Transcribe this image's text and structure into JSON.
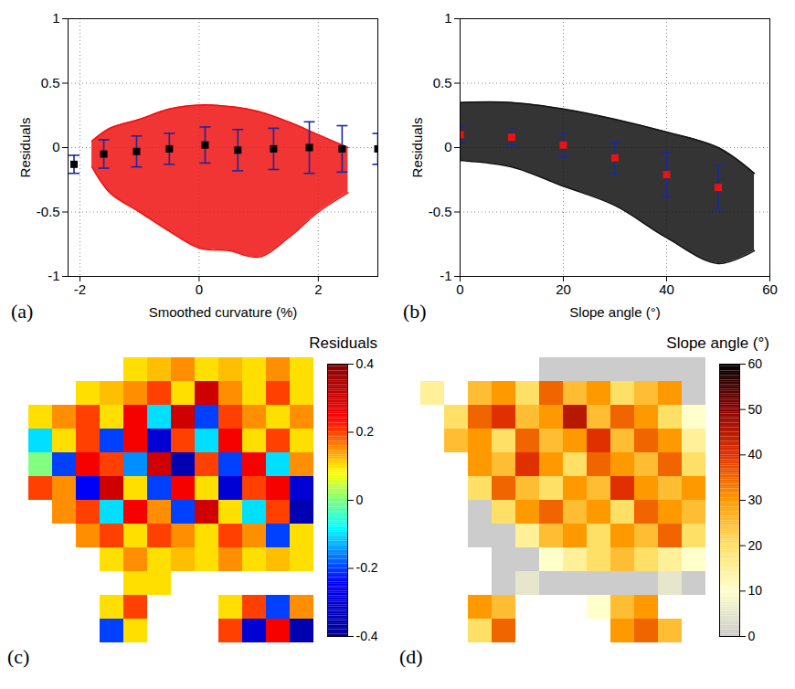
{
  "chart_data": [
    {
      "type": "scatter",
      "panel": "(a)",
      "x_label": "Smoothed curvature (%)",
      "y_label": "Residuals",
      "xlim": [
        -2.2,
        3
      ],
      "xticks": [
        -2,
        0,
        2
      ],
      "ylim": [
        -1,
        1
      ],
      "yticks": [
        -1,
        -0.5,
        0,
        0.5,
        1
      ],
      "grid": true,
      "series": [
        {
          "type": "area",
          "color": "#ee1111",
          "x": [
            -1.8,
            -1.5,
            -1,
            -0.5,
            0,
            0.5,
            1,
            1.5,
            2,
            2.5
          ],
          "upper": [
            0.05,
            0.15,
            0.22,
            0.3,
            0.33,
            0.32,
            0.28,
            0.2,
            0.1,
            0.0
          ],
          "lower": [
            -0.15,
            -0.35,
            -0.5,
            -0.65,
            -0.78,
            -0.8,
            -0.85,
            -0.7,
            -0.5,
            -0.35
          ]
        },
        {
          "type": "errorbar",
          "marker": "square",
          "color": "#000000",
          "x": [
            -2.1,
            -1.6,
            -1.05,
            -0.5,
            0.1,
            0.65,
            1.25,
            1.85,
            2.4,
            3.0
          ],
          "values": [
            -0.13,
            -0.05,
            -0.03,
            -0.01,
            0.02,
            -0.02,
            -0.01,
            0.0,
            -0.01,
            -0.01
          ],
          "errors": [
            0.07,
            0.11,
            0.12,
            0.12,
            0.14,
            0.16,
            0.16,
            0.2,
            0.18,
            0.12
          ]
        }
      ]
    },
    {
      "type": "scatter",
      "panel": "(b)",
      "x_label": "Slope angle (°)",
      "y_label": "Residuals",
      "xlim": [
        0,
        60
      ],
      "xticks": [
        0,
        20,
        40,
        60
      ],
      "ylim": [
        -1,
        1
      ],
      "yticks": [
        -1,
        -0.5,
        0,
        0.5,
        1
      ],
      "grid": true,
      "series": [
        {
          "type": "area",
          "color": "#111111",
          "x": [
            0,
            10,
            20,
            30,
            40,
            50,
            57
          ],
          "upper": [
            0.35,
            0.35,
            0.3,
            0.22,
            0.12,
            0.0,
            -0.2
          ],
          "lower": [
            -0.1,
            -0.15,
            -0.3,
            -0.45,
            -0.7,
            -0.9,
            -0.8
          ]
        },
        {
          "type": "errorbar",
          "marker": "square",
          "color": "#ee1111",
          "x": [
            0,
            10,
            20,
            30,
            40,
            50
          ],
          "values": [
            0.1,
            0.08,
            0.02,
            -0.08,
            -0.21,
            -0.31
          ],
          "errors": [
            0.06,
            0.06,
            0.09,
            0.12,
            0.17,
            0.17
          ]
        }
      ]
    },
    {
      "type": "heatmap",
      "panel": "(c)",
      "title": "Residuals",
      "tick_labels": false,
      "colors": [
        "#00008f",
        "#0000ff",
        "#00ffff",
        "#ffff00",
        "#ff0000",
        "#800000"
      ],
      "clim": [
        -0.4,
        0.4
      ],
      "cticks": [
        -0.4,
        -0.2,
        0,
        0.2,
        0.4
      ],
      "cells": [
        [
          null,
          null,
          null,
          null,
          0.1,
          0.12,
          0.15,
          0.1,
          0.12,
          0.1,
          0.15,
          0.1
        ],
        [
          null,
          null,
          0.1,
          0.12,
          0.15,
          0.2,
          0.1,
          0.3,
          0.15,
          0.1,
          0.2,
          0.1
        ],
        [
          0.1,
          0.15,
          0.2,
          0.1,
          0.25,
          -0.1,
          0.3,
          -0.2,
          0.2,
          0.15,
          0.1,
          0.15
        ],
        [
          -0.1,
          0.1,
          0.2,
          -0.2,
          0.25,
          -0.3,
          0.2,
          -0.1,
          0.25,
          0.1,
          0.2,
          0.1
        ],
        [
          0.0,
          -0.2,
          0.25,
          0.2,
          -0.15,
          0.3,
          -0.35,
          0.2,
          -0.2,
          0.25,
          -0.1,
          0.15
        ],
        [
          0.2,
          0.15,
          -0.25,
          0.3,
          0.1,
          -0.2,
          0.25,
          0.1,
          -0.3,
          0.2,
          0.25,
          -0.3
        ],
        [
          null,
          0.15,
          0.2,
          -0.1,
          0.25,
          0.15,
          -0.2,
          0.3,
          0.1,
          -0.1,
          0.2,
          -0.35
        ],
        [
          null,
          null,
          0.15,
          0.2,
          0.1,
          0.2,
          0.15,
          0.1,
          0.2,
          0.15,
          -0.2,
          0.1
        ],
        [
          null,
          null,
          null,
          0.1,
          0.15,
          0.1,
          0.12,
          0.1,
          0.15,
          0.1,
          0.12,
          0.1
        ],
        [
          null,
          null,
          null,
          null,
          0.1,
          0.1,
          null,
          null,
          null,
          null,
          null,
          null
        ],
        [
          null,
          null,
          null,
          0.1,
          0.2,
          null,
          null,
          null,
          0.1,
          0.2,
          -0.2,
          0.15
        ],
        [
          null,
          null,
          null,
          -0.2,
          0.1,
          null,
          null,
          null,
          0.2,
          -0.3,
          0.25,
          -0.35
        ]
      ]
    },
    {
      "type": "heatmap",
      "panel": "(d)",
      "title": "Slope angle (°)",
      "tick_labels": false,
      "colors": [
        "#cccccc",
        "#ffffcc",
        "#ffe066",
        "#ff9900",
        "#e03000",
        "#8b0000",
        "#000000"
      ],
      "clim": [
        0,
        60
      ],
      "cticks": [
        0,
        10,
        20,
        30,
        40,
        50,
        60
      ],
      "cells": [
        [
          null,
          null,
          null,
          null,
          null,
          0,
          0,
          0,
          0,
          0,
          0,
          0
        ],
        [
          15,
          null,
          25,
          30,
          20,
          35,
          25,
          30,
          20,
          25,
          30,
          0
        ],
        [
          null,
          20,
          35,
          40,
          25,
          30,
          45,
          25,
          35,
          30,
          20,
          10
        ],
        [
          null,
          25,
          30,
          20,
          35,
          25,
          30,
          40,
          25,
          35,
          30,
          15
        ],
        [
          null,
          null,
          30,
          25,
          40,
          30,
          20,
          35,
          30,
          25,
          35,
          20
        ],
        [
          null,
          null,
          20,
          35,
          25,
          20,
          30,
          25,
          40,
          30,
          25,
          30
        ],
        [
          null,
          null,
          0,
          20,
          30,
          35,
          25,
          30,
          20,
          35,
          30,
          25
        ],
        [
          null,
          null,
          0,
          0,
          15,
          25,
          30,
          20,
          30,
          25,
          35,
          20
        ],
        [
          null,
          null,
          null,
          0,
          0,
          10,
          15,
          20,
          25,
          20,
          15,
          10
        ],
        [
          null,
          null,
          null,
          0,
          5,
          0,
          0,
          0,
          0,
          0,
          5,
          0
        ],
        [
          null,
          null,
          30,
          25,
          null,
          null,
          null,
          10,
          25,
          30,
          null,
          null
        ],
        [
          null,
          null,
          20,
          35,
          null,
          null,
          null,
          null,
          30,
          35,
          25,
          null
        ]
      ]
    }
  ]
}
